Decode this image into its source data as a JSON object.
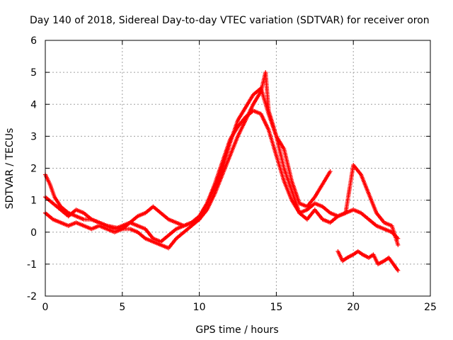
{
  "chart_data": {
    "type": "scatter",
    "title": "Day 140 of 2018, Sidereal Day-to-day VTEC variation (SDTVAR) for receiver oron",
    "xlabel": "GPS time / hours",
    "ylabel": "SDTVAR / TECUs",
    "xlim": [
      0,
      25
    ],
    "ylim": [
      -2,
      6
    ],
    "xticks": [
      0,
      5,
      10,
      15,
      20,
      25
    ],
    "yticks": [
      -2,
      -1,
      0,
      1,
      2,
      3,
      4,
      5,
      6
    ],
    "grid": true,
    "marker": "+",
    "series": [
      {
        "name": "trace-a",
        "color": "#ff0000",
        "x": [
          0.0,
          0.3,
          0.6,
          1.0,
          1.5,
          2.0,
          2.5,
          3.0,
          3.5,
          4.0,
          4.5,
          5.0,
          5.5,
          6.0,
          6.5,
          7.0,
          7.5,
          8.0,
          8.5,
          9.0,
          9.5,
          10.0,
          10.5,
          11.0,
          11.5,
          12.0,
          12.5,
          13.0,
          13.5,
          14.0,
          14.5,
          15.0,
          15.5,
          16.0,
          16.5,
          17.0,
          17.5,
          18.0,
          18.5,
          19.0,
          19.5,
          20.0,
          20.5,
          21.0,
          21.5,
          22.0,
          22.5,
          22.9
        ],
        "y": [
          1.8,
          1.5,
          1.1,
          0.8,
          0.6,
          0.5,
          0.4,
          0.4,
          0.3,
          0.2,
          0.15,
          0.1,
          0.1,
          0.0,
          -0.2,
          -0.3,
          -0.4,
          -0.5,
          -0.2,
          0.0,
          0.2,
          0.4,
          0.9,
          1.5,
          2.2,
          2.9,
          3.3,
          3.6,
          3.8,
          3.7,
          3.2,
          2.4,
          1.6,
          1.0,
          0.6,
          0.7,
          0.9,
          0.8,
          0.6,
          0.5,
          0.6,
          0.7,
          0.6,
          0.4,
          0.2,
          0.1,
          0.0,
          -0.2
        ]
      },
      {
        "name": "trace-b",
        "color": "#ff0000",
        "x": [
          0.0,
          0.5,
          1.0,
          1.5,
          2.0,
          2.5,
          3.0,
          3.5,
          4.0,
          4.5,
          5.0,
          5.5,
          6.0,
          6.5,
          7.0,
          7.5,
          8.0,
          8.5,
          9.0,
          9.5,
          10.0,
          10.5,
          11.0,
          11.5,
          12.0,
          12.5,
          13.0,
          13.5,
          14.0,
          14.5,
          15.0,
          15.5,
          16.0,
          16.5,
          17.0,
          17.5,
          18.0,
          18.5
        ],
        "y": [
          1.1,
          0.9,
          0.7,
          0.5,
          0.7,
          0.6,
          0.4,
          0.3,
          0.2,
          0.1,
          0.2,
          0.3,
          0.5,
          0.6,
          0.8,
          0.6,
          0.4,
          0.3,
          0.2,
          0.3,
          0.5,
          0.9,
          1.4,
          2.0,
          2.8,
          3.5,
          3.9,
          4.3,
          4.5,
          3.7,
          3.0,
          2.6,
          1.6,
          0.9,
          0.8,
          1.1,
          1.5,
          1.9
        ]
      },
      {
        "name": "trace-c",
        "color": "#ff0000",
        "x": [
          0.0,
          0.5,
          1.0,
          1.5,
          2.0,
          2.5,
          3.0,
          3.5,
          4.0,
          4.5,
          5.0,
          5.5,
          6.0,
          6.5,
          7.0,
          7.5,
          8.0,
          8.5,
          9.0,
          9.5,
          10.0,
          10.5,
          11.0,
          11.5,
          12.0,
          12.5,
          13.0,
          13.5,
          14.0,
          14.3,
          14.5,
          15.0,
          15.5,
          16.0,
          16.5,
          17.0,
          17.5,
          18.0,
          18.5,
          19.0,
          19.5,
          20.0,
          20.5,
          21.0,
          21.5,
          22.0,
          22.5,
          22.9
        ],
        "y": [
          0.6,
          0.4,
          0.3,
          0.2,
          0.3,
          0.2,
          0.1,
          0.2,
          0.1,
          0.0,
          0.1,
          0.3,
          0.2,
          0.1,
          -0.2,
          -0.3,
          -0.1,
          0.1,
          0.2,
          0.3,
          0.4,
          0.7,
          1.2,
          1.8,
          2.4,
          3.0,
          3.5,
          4.0,
          4.4,
          5.0,
          3.8,
          3.0,
          2.0,
          1.3,
          0.6,
          0.4,
          0.7,
          0.4,
          0.3,
          0.5,
          0.6,
          2.1,
          1.8,
          1.2,
          0.6,
          0.3,
          0.2,
          -0.4
        ]
      },
      {
        "name": "trace-d",
        "color": "#ff0000",
        "x": [
          19.0,
          19.3,
          19.6,
          20.0,
          20.3,
          20.6,
          21.0,
          21.3,
          21.6,
          22.0,
          22.3,
          22.6,
          22.9
        ],
        "y": [
          -0.6,
          -0.9,
          -0.8,
          -0.7,
          -0.6,
          -0.7,
          -0.8,
          -0.7,
          -1.0,
          -0.9,
          -0.8,
          -1.0,
          -1.2
        ]
      }
    ]
  }
}
